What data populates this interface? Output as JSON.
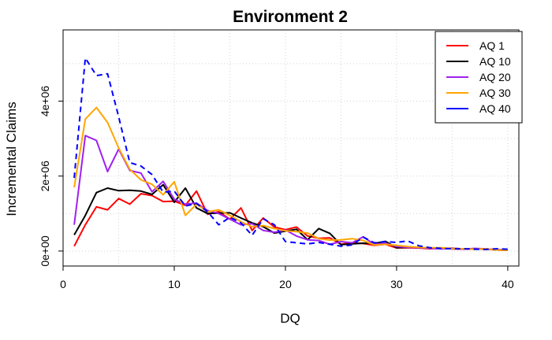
{
  "chart_data": {
    "type": "line",
    "title": "Environment 2",
    "xlabel": "DQ",
    "ylabel": "Incremental Claims",
    "xlim": [
      0,
      41
    ],
    "ylim": [
      -400000,
      5900000
    ],
    "x_ticks": [
      0,
      10,
      20,
      30,
      40
    ],
    "x_tick_labels": [
      "0",
      "10",
      "20",
      "30",
      "40"
    ],
    "y_ticks": [
      0,
      2000000,
      4000000
    ],
    "y_tick_labels": [
      "0e+00",
      "2e+06",
      "4e+06"
    ],
    "grid_x": [
      0,
      5,
      10,
      15,
      20,
      25,
      30,
      35,
      40
    ],
    "grid_y": [
      0,
      1000000,
      2000000,
      3000000,
      4000000,
      5000000
    ],
    "legend_position": "top-right",
    "x": [
      1,
      2,
      3,
      4,
      5,
      6,
      7,
      8,
      9,
      10,
      11,
      12,
      13,
      14,
      15,
      16,
      17,
      18,
      19,
      20,
      21,
      22,
      23,
      24,
      25,
      26,
      27,
      28,
      29,
      30,
      31,
      32,
      33,
      34,
      35,
      36,
      37,
      38,
      39,
      40
    ],
    "series": [
      {
        "name": "AQ 1",
        "color": "#ff0000",
        "dash": "solid",
        "values": [
          130000,
          700000,
          1180000,
          1100000,
          1400000,
          1250000,
          1530000,
          1480000,
          1320000,
          1330000,
          1220000,
          1600000,
          980000,
          1050000,
          850000,
          1150000,
          550000,
          880000,
          640000,
          570000,
          640000,
          400000,
          340000,
          350000,
          180000,
          220000,
          200000,
          150000,
          180000,
          80000,
          90000,
          80000,
          60000,
          70000,
          60000,
          50000,
          60000,
          50000,
          30000,
          20000
        ]
      },
      {
        "name": "AQ 10",
        "color": "#000000",
        "dash": "solid",
        "values": [
          430000,
          950000,
          1560000,
          1680000,
          1610000,
          1620000,
          1600000,
          1510000,
          1770000,
          1300000,
          1680000,
          1150000,
          1000000,
          1010000,
          1020000,
          880000,
          750000,
          650000,
          480000,
          530000,
          580000,
          300000,
          600000,
          470000,
          170000,
          190000,
          210000,
          200000,
          260000,
          90000,
          100000,
          90000,
          80000,
          60000,
          70000,
          60000,
          50000,
          60000,
          30000,
          20000
        ]
      },
      {
        "name": "AQ 20",
        "color": "#a020f0",
        "dash": "solid",
        "values": [
          700000,
          3080000,
          2950000,
          2120000,
          2720000,
          2150000,
          2080000,
          1580000,
          1860000,
          1380000,
          1250000,
          1280000,
          1080000,
          1000000,
          850000,
          700000,
          730000,
          550000,
          500000,
          560000,
          400000,
          300000,
          280000,
          180000,
          250000,
          220000,
          380000,
          180000,
          210000,
          120000,
          100000,
          90000,
          70000,
          60000,
          80000,
          50000,
          70000,
          60000,
          40000,
          30000
        ]
      },
      {
        "name": "AQ 30",
        "color": "#ffa500",
        "dash": "solid",
        "values": [
          1700000,
          3520000,
          3830000,
          3430000,
          2750000,
          2180000,
          1900000,
          1780000,
          1500000,
          1850000,
          950000,
          1250000,
          1050000,
          1100000,
          950000,
          780000,
          650000,
          680000,
          600000,
          540000,
          520000,
          480000,
          330000,
          290000,
          300000,
          330000,
          280000,
          160000,
          180000,
          150000,
          120000,
          100000,
          90000,
          90000,
          70000,
          60000,
          50000,
          60000,
          30000,
          20000
        ]
      },
      {
        "name": "AQ 40",
        "color": "#0000ff",
        "dash": "dashed",
        "values": [
          1950000,
          5150000,
          4680000,
          4730000,
          3580000,
          2360000,
          2270000,
          2040000,
          1570000,
          1600000,
          1200000,
          1270000,
          1050000,
          700000,
          900000,
          750000,
          420000,
          860000,
          700000,
          250000,
          220000,
          190000,
          230000,
          180000,
          130000,
          160000,
          370000,
          220000,
          250000,
          230000,
          270000,
          140000,
          90000,
          70000,
          60000,
          60000,
          50000,
          40000,
          60000,
          50000
        ]
      }
    ]
  }
}
